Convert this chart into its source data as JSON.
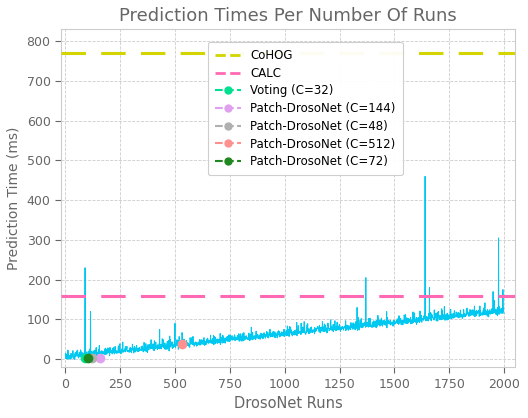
{
  "title": "Prediction Times Per Number Of Runs",
  "xlabel": "DrosoNet Runs",
  "ylabel": "Prediction Time (ms)",
  "cohog_y": 770,
  "calc_y": 160,
  "cohog_color": "#d4d400",
  "calc_color": "#ff69b4",
  "cyan_color": "#00c8f0",
  "voting_color": "#00e090",
  "patch144_color": "#e0a0f0",
  "patch48_color": "#b0b0b0",
  "patch512_color": "#ff9090",
  "patch72_color": "#208820",
  "voting_x": 90,
  "voting_y": 2,
  "patch144_x": 160,
  "patch144_y": 2,
  "patch48_x": 120,
  "patch48_y": 2,
  "patch512_x": 530,
  "patch512_y": 37,
  "patch72_x": 105,
  "patch72_y": 2,
  "xlim": [
    -20,
    2050
  ],
  "ylim": [
    -20,
    830
  ],
  "yticks": [
    0,
    100,
    200,
    300,
    400,
    500,
    600,
    700,
    800
  ],
  "xticks": [
    0,
    250,
    500,
    750,
    1000,
    1250,
    1500,
    1750,
    2000
  ],
  "bg_color": "#ffffff",
  "grid_color": "#cccccc",
  "title_color": "#666666",
  "legend_fontsize": 8.5,
  "title_fontsize": 13
}
